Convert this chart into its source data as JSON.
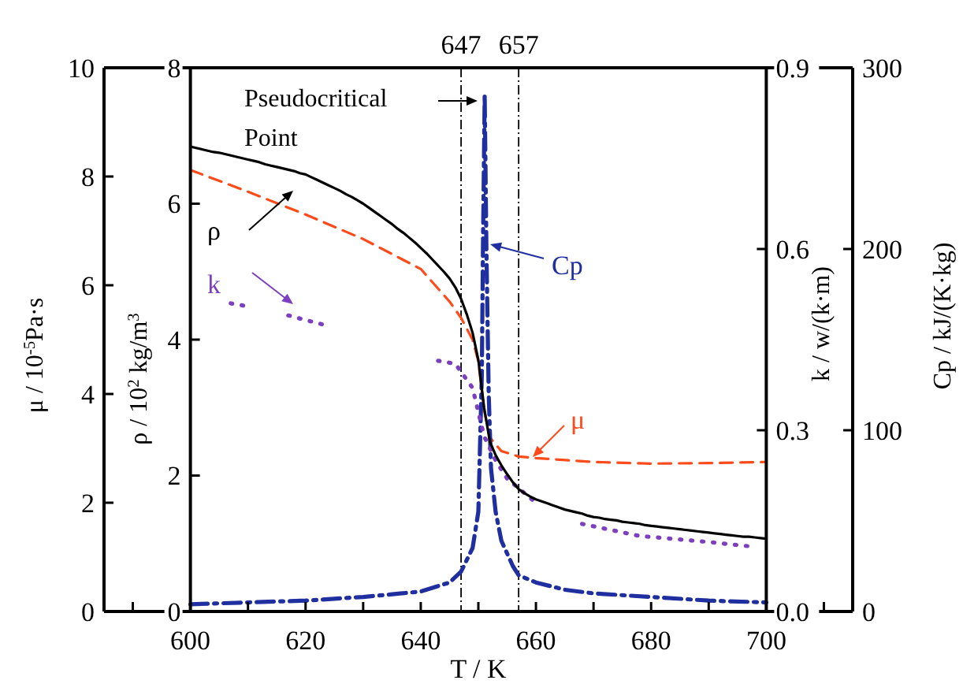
{
  "chart_data": [
    {
      "type": "line",
      "xlabel": "T / K",
      "ylabel": "μ / 10$^{-5}$Pa·s",
      "y2label": "Cp / kJ/(K·kg)",
      "y3label": "k / w/(k·m)",
      "xlim": [
        585,
        715
      ],
      "xticks": [
        {
          "value": 590,
          "label": null
        },
        600,
        {
          "value": 610,
          "label": null
        },
        620,
        {
          "value": 630,
          "label": null
        },
        640,
        {
          "value": 650,
          "label": null
        },
        660,
        {
          "value": 670,
          "label": null
        },
        680,
        {
          "value": 690,
          "label": null
        },
        700,
        {
          "value": 710,
          "label": null
        }
      ],
      "ylim": [
        0,
        10
      ],
      "yticks": [
        0,
        2,
        4,
        6,
        8,
        10
      ],
      "y2lim": [
        0,
        300
      ],
      "y2ticks": [
        0,
        100,
        200,
        300
      ],
      "y3lim": [
        0,
        0.9
      ],
      "y3ticks": [
        {
          "value": 0,
          "label": "0.0"
        },
        {
          "value": 0.3,
          "label": "0.3"
        },
        {
          "value": 0.6,
          "label": "0.6"
        },
        {
          "value": 0.9,
          "label": "0.9"
        }
      ],
      "ref_lines": [
        {
          "axis": "x",
          "value": 647,
          "label": "647",
          "color": "#000000",
          "line_style": "dashdot"
        },
        {
          "axis": "x",
          "value": 657,
          "label": "657",
          "color": "#000000",
          "line_style": "dashdot"
        }
      ],
      "annotations": [
        "Pseudocritical Point"
      ],
      "legend": "center",
      "series": [
        {
          "name": "μ",
          "color": "#ff4a1a",
          "line_style": "dashed",
          "x": [
            600,
            610,
            620,
            630,
            640,
            645,
            647,
            649,
            650,
            651,
            652,
            654,
            657,
            660,
            670,
            680,
            690,
            700
          ],
          "values": [
            8.12,
            7.72,
            7.3,
            6.85,
            6.3,
            5.7,
            5.4,
            5.0,
            4.6,
            3.7,
            3.2,
            2.95,
            2.85,
            2.82,
            2.75,
            2.72,
            2.73,
            2.75
          ]
        },
        {
          "name": "Cp",
          "axis": "y2",
          "color": "#1f2f9f",
          "line_style": "dashdot",
          "x": [
            600,
            620,
            630,
            640,
            645,
            647,
            649,
            650,
            650.6,
            650.8,
            651.1,
            651.4,
            651.8,
            652.2,
            653,
            654,
            656,
            657,
            660,
            665,
            670,
            680,
            690,
            700
          ],
          "values": [
            4,
            6,
            8,
            11,
            16,
            22,
            35,
            55,
            130,
            200,
            285,
            200,
            120,
            79,
            55,
            39,
            25,
            20,
            16,
            12,
            10,
            8,
            6,
            5
          ]
        },
        {
          "name": "k",
          "axis": "y3",
          "color": "#7b3fbf",
          "line_style": "dotted",
          "x": [
            607,
            610,
            613,
            617,
            623,
            630,
            643,
            646,
            649,
            650,
            651,
            653,
            655,
            660,
            662,
            668,
            678,
            690,
            698
          ],
          "values": [
            0.51,
            0.505,
            null,
            0.49,
            0.475,
            null,
            0.415,
            0.41,
            0.37,
            0.33,
            0.29,
            0.25,
            0.22,
            0.18,
            null,
            0.145,
            0.125,
            0.115,
            0.107
          ]
        }
      ]
    },
    {
      "type": "line",
      "tick_labels": "y",
      "ylabel": "ρ / 10$^{2}$ kg/m$^{3}$",
      "categories": [
        null,
        null,
        null,
        null,
        null,
        null,
        null,
        null,
        null,
        null,
        null,
        null,
        null,
        null,
        null,
        null,
        null,
        null,
        null,
        null,
        null,
        null,
        null,
        null,
        null,
        null,
        null,
        null,
        null,
        null,
        null,
        null,
        null,
        null,
        null,
        null,
        null,
        null,
        null,
        null,
        null,
        null,
        null,
        null,
        null,
        null,
        null,
        null,
        null,
        null,
        null,
        null,
        null,
        null,
        null,
        null,
        null,
        null,
        null,
        null,
        null,
        null,
        null,
        null,
        null,
        null,
        null,
        null,
        null,
        null,
        null,
        null,
        null,
        null,
        null,
        null,
        null,
        null,
        null,
        null,
        null,
        null,
        null,
        null,
        null,
        null,
        null,
        null,
        null,
        null,
        null,
        null,
        null,
        null,
        null,
        null,
        null,
        null,
        null,
        null,
        null
      ],
      "ylim": [
        0,
        8
      ],
      "yticks": [
        0,
        2,
        4,
        6,
        8
      ],
      "series": [
        {
          "name": "ρ",
          "color": "#000000",
          "line_style": "solid",
          "values": [
            6.84,
            6.82,
            6.8,
            6.78,
            6.76,
            6.75,
            6.73,
            6.71,
            6.69,
            6.67,
            6.65,
            6.63,
            6.61,
            6.58,
            6.56,
            6.54,
            6.52,
            6.5,
            6.48,
            6.45,
            6.43,
            6.39,
            6.35,
            6.31,
            6.27,
            6.23,
            6.19,
            6.14,
            6.1,
            6.05,
            6.0,
            5.94,
            5.88,
            5.82,
            5.76,
            5.7,
            5.63,
            5.57,
            5.5,
            5.43,
            5.35,
            5.27,
            5.18,
            5.09,
            5.0,
            4.9,
            4.77,
            4.6,
            4.37,
            4.1,
            3.7,
            3.0,
            2.5,
            2.3,
            2.15,
            2.02,
            1.9,
            1.8,
            1.74,
            1.69,
            1.65,
            1.62,
            1.59,
            1.56,
            1.53,
            1.5,
            1.48,
            1.46,
            1.44,
            1.41,
            1.39,
            1.38,
            1.36,
            1.35,
            1.34,
            1.32,
            1.31,
            1.3,
            1.29,
            1.27,
            1.26,
            1.25,
            1.24,
            1.23,
            1.22,
            1.21,
            1.2,
            1.19,
            1.18,
            1.17,
            1.16,
            1.15,
            1.14,
            1.13,
            1.12,
            1.11,
            1.1,
            1.1,
            1.09,
            1.08,
            1.07
          ]
        }
      ]
    }
  ]
}
